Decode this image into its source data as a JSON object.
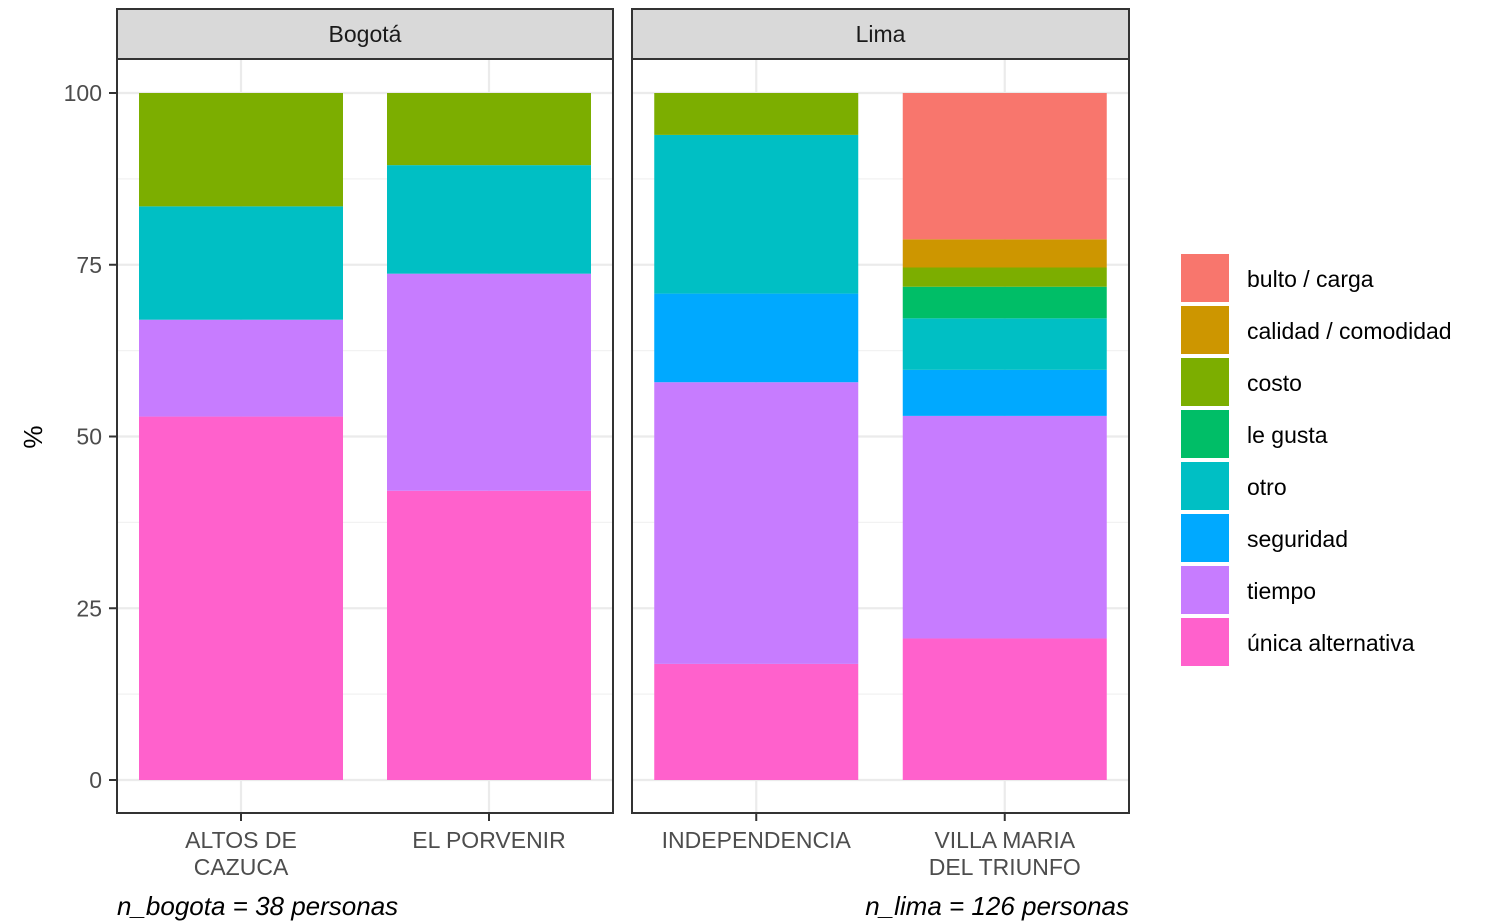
{
  "chart_data": {
    "type": "bar",
    "stacked": true,
    "ylabel": "%",
    "xlabel": "",
    "ylim": [
      0,
      105
    ],
    "y_ticks": [
      0,
      25,
      50,
      75,
      100
    ],
    "grid": true,
    "legend_position": "right",
    "legend": [
      {
        "name": "bulto / carga",
        "color": "#F8766D"
      },
      {
        "name": "calidad / comodidad",
        "color": "#CD9600"
      },
      {
        "name": "costo",
        "color": "#7CAE00"
      },
      {
        "name": "le gusta",
        "color": "#00BE67"
      },
      {
        "name": "otro",
        "color": "#00BFC4"
      },
      {
        "name": "seguridad",
        "color": "#00A9FF"
      },
      {
        "name": "tiempo",
        "color": "#C77CFF"
      },
      {
        "name": "única alternativa",
        "color": "#FF61CC"
      }
    ],
    "panels": [
      {
        "strip": "Bogotá",
        "caption": "n_bogota = 38 personas",
        "bars": [
          {
            "label": [
              "ALTOS DE",
              "CAZUCA"
            ],
            "segments": {
              "única alternativa": 52.9,
              "tiempo": 14.1,
              "seguridad": 0,
              "otro": 16.5,
              "le gusta": 0,
              "costo": 16.5,
              "calidad / comodidad": 0,
              "bulto / carga": 0
            }
          },
          {
            "label": [
              "EL PORVENIR"
            ],
            "segments": {
              "única alternativa": 42.1,
              "tiempo": 31.6,
              "seguridad": 0,
              "otro": 15.8,
              "le gusta": 0,
              "costo": 10.5,
              "calidad / comodidad": 0,
              "bulto / carga": 0
            }
          }
        ]
      },
      {
        "strip": "Lima",
        "caption": "n_lima = 126 personas",
        "bars": [
          {
            "label": [
              "INDEPENDENCIA"
            ],
            "segments": {
              "única alternativa": 16.9,
              "tiempo": 41.0,
              "seguridad": 12.9,
              "otro": 23.1,
              "le gusta": 0,
              "costo": 6.1,
              "calidad / comodidad": 0,
              "bulto / carga": 0
            }
          },
          {
            "label": [
              "VILLA MARIA",
              "DEL TRIUNFO"
            ],
            "segments": {
              "única alternativa": 20.6,
              "tiempo": 32.4,
              "seguridad": 6.7,
              "otro": 7.5,
              "le gusta": 4.6,
              "costo": 2.8,
              "calidad / comodidad": 4.1,
              "bulto / carga": 21.3
            }
          }
        ]
      }
    ]
  }
}
